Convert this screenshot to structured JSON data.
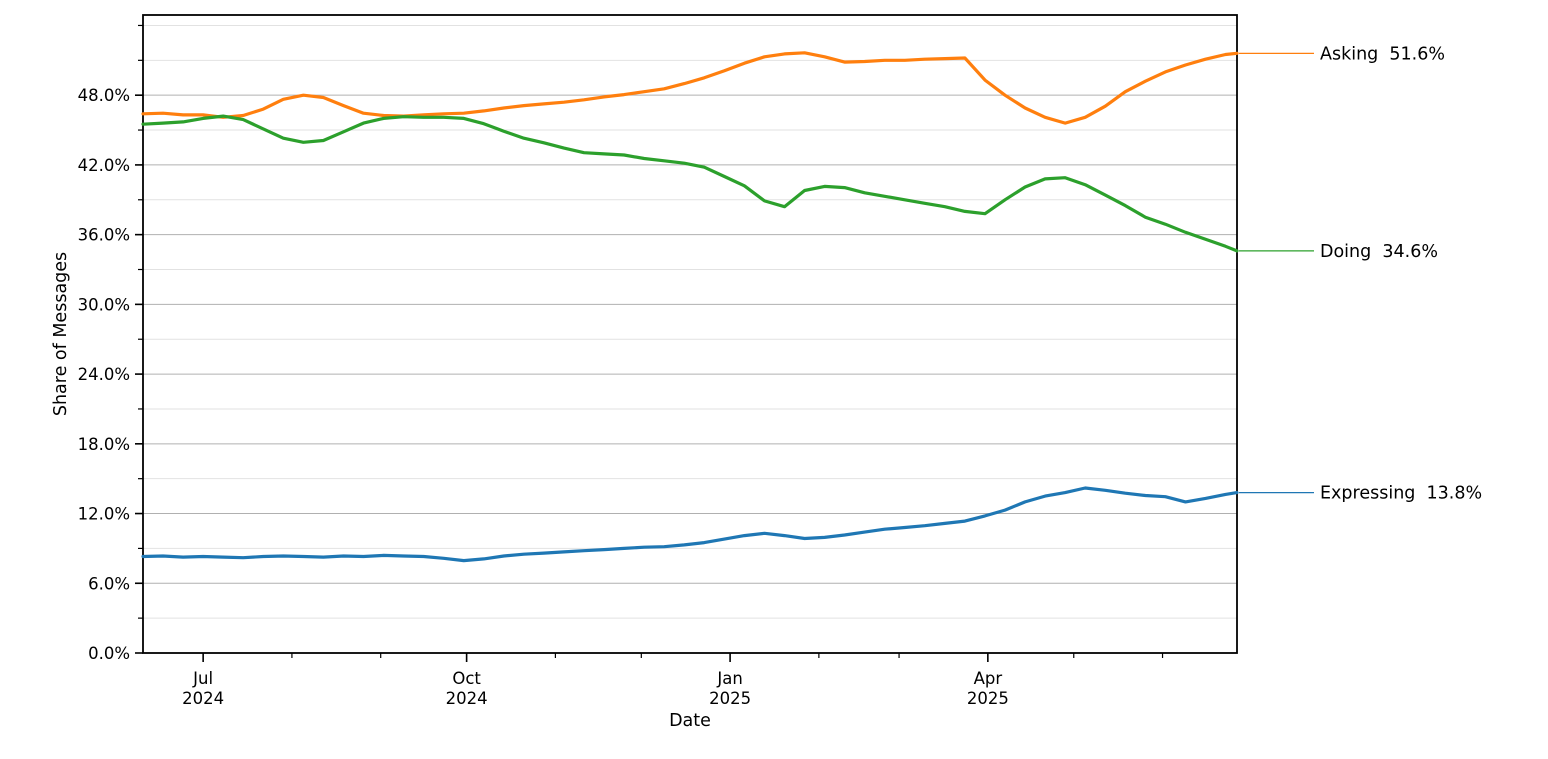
{
  "chart_data": {
    "type": "line",
    "title": "",
    "xlabel": "Date",
    "ylabel": "Share of Messages",
    "grid": "horizontal-only",
    "legend_position": "right-edge-end-labels",
    "background": "#ffffff",
    "axis_color": "#000000",
    "grid_major_color": "#b0b0b0",
    "grid_minor_color": "#e2e2e2",
    "xlim_days": [
      0,
      382
    ],
    "ylim": [
      0,
      54.9
    ],
    "x_start_date": "2024-06-10",
    "x_end_date": "2025-06-27",
    "x_dates": [
      "2024-06-10",
      "2024-06-17",
      "2024-06-24",
      "2024-07-01",
      "2024-07-08",
      "2024-07-15",
      "2024-07-22",
      "2024-07-29",
      "2024-08-05",
      "2024-08-12",
      "2024-08-19",
      "2024-08-26",
      "2024-09-02",
      "2024-09-09",
      "2024-09-16",
      "2024-09-23",
      "2024-09-30",
      "2024-10-07",
      "2024-10-14",
      "2024-10-21",
      "2024-10-28",
      "2024-11-04",
      "2024-11-11",
      "2024-11-18",
      "2024-11-25",
      "2024-12-02",
      "2024-12-09",
      "2024-12-16",
      "2024-12-23",
      "2024-12-30",
      "2025-01-06",
      "2025-01-13",
      "2025-01-20",
      "2025-01-27",
      "2025-02-03",
      "2025-02-10",
      "2025-02-17",
      "2025-02-24",
      "2025-03-03",
      "2025-03-10",
      "2025-03-17",
      "2025-03-24",
      "2025-03-31",
      "2025-04-07",
      "2025-04-14",
      "2025-04-21",
      "2025-04-28",
      "2025-05-05",
      "2025-05-12",
      "2025-05-19",
      "2025-05-26",
      "2025-06-02",
      "2025-06-09",
      "2025-06-16",
      "2025-06-23",
      "2025-06-27"
    ],
    "x_days": [
      0,
      7,
      14,
      21,
      28,
      35,
      42,
      49,
      56,
      63,
      70,
      77,
      84,
      91,
      98,
      105,
      112,
      119,
      126,
      133,
      140,
      147,
      154,
      161,
      168,
      175,
      182,
      189,
      196,
      203,
      210,
      217,
      224,
      231,
      238,
      245,
      252,
      259,
      266,
      273,
      280,
      287,
      294,
      301,
      308,
      315,
      322,
      329,
      336,
      343,
      350,
      357,
      364,
      371,
      378,
      382
    ],
    "series": [
      {
        "name": "Asking",
        "color": "#ff7f0e",
        "final_value": 51.6,
        "final_label": "51.6%",
        "legend": "Asking  51.6%",
        "values": [
          46.4,
          46.45,
          46.3,
          46.3,
          46.1,
          46.25,
          46.8,
          47.65,
          48.0,
          47.8,
          47.1,
          46.45,
          46.25,
          46.2,
          46.3,
          46.4,
          46.45,
          46.65,
          46.9,
          47.1,
          47.25,
          47.4,
          47.6,
          47.85,
          48.05,
          48.3,
          48.55,
          49.0,
          49.5,
          50.1,
          50.75,
          51.3,
          51.55,
          51.65,
          51.3,
          50.85,
          50.9,
          51.0,
          51.0,
          51.1,
          51.15,
          51.2,
          49.3,
          48.0,
          46.9,
          46.1,
          45.6,
          46.1,
          47.05,
          48.3,
          49.2,
          50.0,
          50.6,
          51.1,
          51.5,
          51.6
        ]
      },
      {
        "name": "Doing",
        "color": "#2ca02c",
        "final_value": 34.6,
        "final_label": "34.6%",
        "legend": "Doing  34.6%",
        "values": [
          45.5,
          45.6,
          45.7,
          46.0,
          46.2,
          45.9,
          45.1,
          44.3,
          43.95,
          44.1,
          44.85,
          45.6,
          46.0,
          46.15,
          46.1,
          46.1,
          46.0,
          45.55,
          44.9,
          44.3,
          43.9,
          43.45,
          43.05,
          42.95,
          42.85,
          42.55,
          42.35,
          42.15,
          41.8,
          41.0,
          40.2,
          38.9,
          38.4,
          39.8,
          40.15,
          40.05,
          39.6,
          39.3,
          39.0,
          38.7,
          38.4,
          38.0,
          37.8,
          39.0,
          40.1,
          40.8,
          40.9,
          40.3,
          39.4,
          38.5,
          37.5,
          36.9,
          36.2,
          35.6,
          35.0,
          34.6
        ]
      },
      {
        "name": "Expressing",
        "color": "#1f77b4",
        "final_value": 13.8,
        "final_label": "13.8%",
        "legend": "Expressing  13.8%",
        "values": [
          8.3,
          8.35,
          8.25,
          8.3,
          8.25,
          8.2,
          8.3,
          8.35,
          8.3,
          8.25,
          8.35,
          8.3,
          8.4,
          8.35,
          8.3,
          8.15,
          7.95,
          8.1,
          8.35,
          8.5,
          8.6,
          8.7,
          8.8,
          8.9,
          9.0,
          9.1,
          9.15,
          9.3,
          9.5,
          9.8,
          10.1,
          10.3,
          10.1,
          9.85,
          9.95,
          10.15,
          10.4,
          10.65,
          10.8,
          10.95,
          11.15,
          11.35,
          11.8,
          12.3,
          13.0,
          13.5,
          13.8,
          14.2,
          14.0,
          13.75,
          13.55,
          13.45,
          13.0,
          13.3,
          13.65,
          13.8
        ]
      }
    ],
    "x_ticks_major": [
      {
        "day": 21,
        "line1": "Jul",
        "line2": "2024"
      },
      {
        "day": 113,
        "line1": "Oct",
        "line2": "2024"
      },
      {
        "day": 205,
        "line1": "Jan",
        "line2": "2025"
      },
      {
        "day": 295,
        "line1": "Apr",
        "line2": "2025"
      }
    ],
    "x_ticks_minor_days": [
      52,
      83,
      144,
      174,
      236,
      264,
      325,
      356
    ],
    "y_ticks_major": [
      {
        "value": 0,
        "label": "0.0%"
      },
      {
        "value": 6,
        "label": "6.0%"
      },
      {
        "value": 12,
        "label": "12.0%"
      },
      {
        "value": 18,
        "label": "18.0%"
      },
      {
        "value": 24,
        "label": "24.0%"
      },
      {
        "value": 30,
        "label": "30.0%"
      },
      {
        "value": 36,
        "label": "36.0%"
      },
      {
        "value": 42,
        "label": "42.0%"
      },
      {
        "value": 48,
        "label": "48.0%"
      }
    ],
    "y_ticks_minor": [
      3,
      9,
      15,
      21,
      27,
      33,
      39,
      45,
      51,
      54
    ]
  }
}
